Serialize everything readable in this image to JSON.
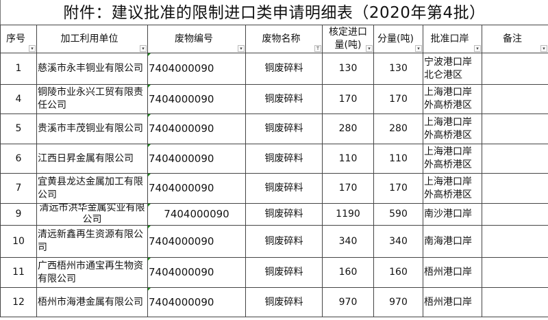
{
  "title": "附件：建议批准的限制进口类申请明细表（2020年第4批）",
  "headers": [
    "序号",
    "加工利用单位",
    "废物编号",
    "废物名称",
    "核定进口量(吨)",
    "分量(吨)",
    "批准口岸",
    "备注"
  ],
  "rows": [
    {
      "no": "1",
      "company": "慈溪市永丰铜业有限公司",
      "code": "7404000090",
      "name": "铜废碎料",
      "approved": "130",
      "portion": "130",
      "port": "宁波港口岸北仑港区",
      "note": ""
    },
    {
      "no": "4",
      "company": "铜陵市业永兴工贸有限责任公司",
      "code": "7404000090",
      "name": "铜废碎料",
      "approved": "170",
      "portion": "170",
      "port": "上海港口岸外高桥港区",
      "note": ""
    },
    {
      "no": "5",
      "company": "贵溪市丰茂铜业有限公司",
      "code": "7404000090",
      "name": "铜废碎料",
      "approved": "280",
      "portion": "280",
      "port": "上海港口岸外高桥港区",
      "note": ""
    },
    {
      "no": "6",
      "company": "江西日昇金属有限公司",
      "code": "7404000090",
      "name": "铜废碎料",
      "approved": "110",
      "portion": "110",
      "port": "上海港口岸外高桥港区",
      "note": ""
    },
    {
      "no": "7",
      "company": "宜黄县龙达金属加工有限公司",
      "code": "7404000090",
      "name": "铜废碎料",
      "approved": "170",
      "portion": "170",
      "port": "上海港口岸外高桥港区",
      "note": ""
    },
    {
      "no": "9",
      "company": "清远市洪华金属实业有限公司",
      "code": "7404000090",
      "name": "铜废碎料",
      "approved": "1190",
      "portion": "590",
      "port": "南沙港口岸",
      "note": ""
    },
    {
      "no": "10",
      "company": "清远新鑫再生资源有限公司",
      "code": "7404000090",
      "name": "铜废碎料",
      "approved": "340",
      "portion": "340",
      "port": "南海港口岸",
      "note": ""
    },
    {
      "no": "11",
      "company": "广西梧州市通宝再生物资有限公司",
      "code": "7404000090",
      "name": "铜废碎料",
      "approved": "160",
      "portion": "160",
      "port": "梧州港口岸",
      "note": ""
    },
    {
      "no": "12",
      "company": "梧州市海港金属有限公司",
      "code": "7404000090",
      "name": "铜废碎料",
      "approved": "970",
      "portion": "970",
      "port": "梧州港口岸",
      "note": ""
    }
  ]
}
